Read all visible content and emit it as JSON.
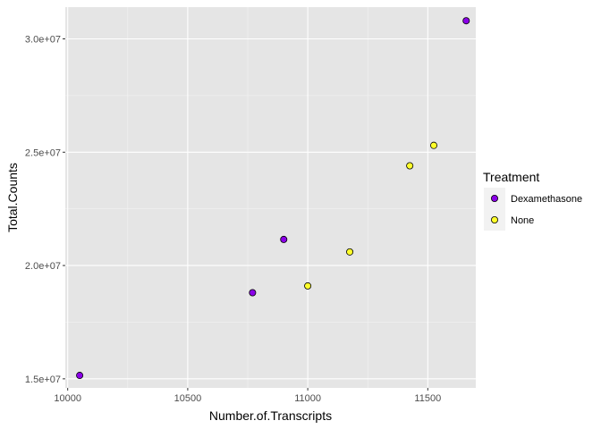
{
  "chart_data": {
    "type": "scatter",
    "title": "",
    "xlabel": "Number.of.Transcripts",
    "ylabel": "Total.Counts",
    "xlim": [
      9990,
      11700
    ],
    "ylim": [
      14600000,
      31400000
    ],
    "x_ticks": [
      10000,
      10500,
      11000,
      11500
    ],
    "x_tick_labels": [
      "10000",
      "10500",
      "11000",
      "11500"
    ],
    "y_ticks": [
      15000000,
      20000000,
      25000000,
      30000000
    ],
    "y_tick_labels": [
      "1.5e+07",
      "2.0e+07",
      "2.5e+07",
      "3.0e+07"
    ],
    "grid": true,
    "background": "#E5E5E5",
    "legend": {
      "title": "Treatment",
      "position": "right",
      "entries": [
        {
          "name": "Dexamethasone",
          "color": "#8B00E8"
        },
        {
          "name": "None",
          "color": "#FFFF2A"
        }
      ]
    },
    "series": [
      {
        "name": "Dexamethasone",
        "color": "#8B00E8",
        "points": [
          {
            "x": 10050,
            "y": 15150000
          },
          {
            "x": 10770,
            "y": 18800000
          },
          {
            "x": 10900,
            "y": 21150000
          },
          {
            "x": 11660,
            "y": 30800000
          }
        ]
      },
      {
        "name": "None",
        "color": "#FFFF2A",
        "points": [
          {
            "x": 11000,
            "y": 19100000
          },
          {
            "x": 11175,
            "y": 20600000
          },
          {
            "x": 11425,
            "y": 24400000
          },
          {
            "x": 11525,
            "y": 25300000
          }
        ]
      }
    ]
  }
}
